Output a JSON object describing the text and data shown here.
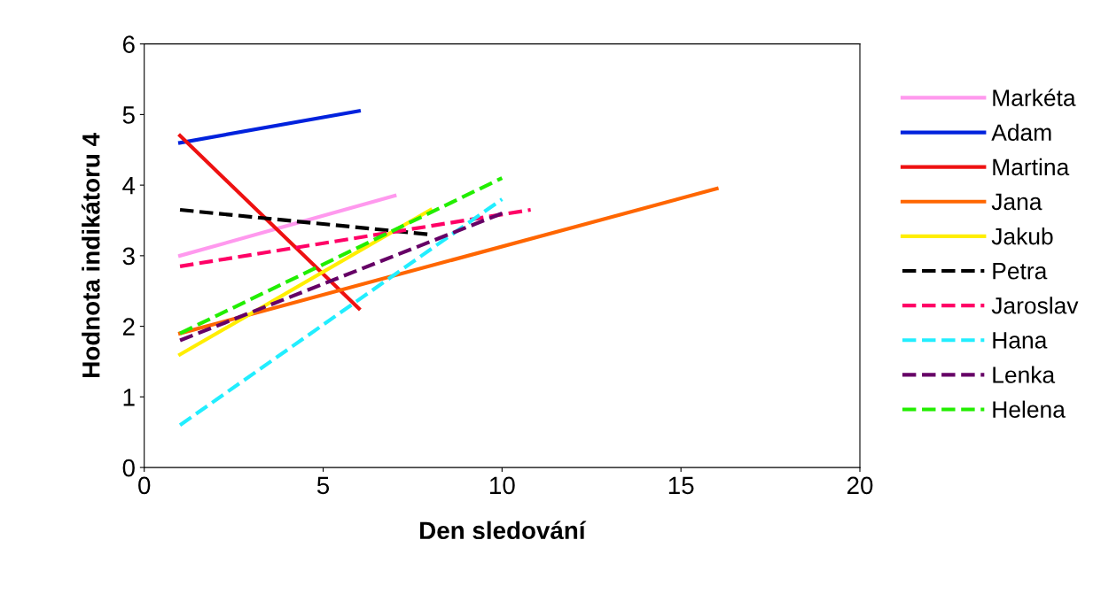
{
  "chart_data": {
    "type": "line",
    "xlabel": "Den sledování",
    "ylabel": "Hodnota indikátoru 4",
    "xlim": [
      0,
      20
    ],
    "xticks": [
      0,
      5,
      10,
      15,
      20
    ],
    "ylim": [
      0,
      6
    ],
    "yticks": [
      0,
      1,
      2,
      3,
      4,
      5,
      6
    ],
    "grid": false,
    "legend": "right",
    "marker": "none",
    "series": [
      {
        "name": "Markéta",
        "color": "#ff99ee",
        "line_style": "solid",
        "x": [
          1,
          7
        ],
        "values": [
          3.0,
          3.85
        ]
      },
      {
        "name": "Adam",
        "color": "#0022dd",
        "line_style": "solid",
        "x": [
          1,
          6
        ],
        "values": [
          4.6,
          5.05
        ]
      },
      {
        "name": "Martina",
        "color": "#ee1111",
        "line_style": "solid",
        "x": [
          1,
          6
        ],
        "values": [
          4.7,
          2.25
        ]
      },
      {
        "name": "Jana",
        "color": "#ff6600",
        "line_style": "solid",
        "x": [
          1,
          16
        ],
        "values": [
          1.9,
          3.95
        ]
      },
      {
        "name": "Jakub",
        "color": "#ffee00",
        "line_style": "solid",
        "x": [
          1,
          8
        ],
        "values": [
          1.6,
          3.65
        ]
      },
      {
        "name": "Petra",
        "color": "#000000",
        "line_style": "dashed",
        "x": [
          1,
          8
        ],
        "values": [
          3.65,
          3.3
        ]
      },
      {
        "name": "Jaroslav",
        "color": "#ff0066",
        "line_style": "dashed",
        "x": [
          1,
          10.8
        ],
        "values": [
          2.85,
          3.65
        ]
      },
      {
        "name": "Hana",
        "color": "#22eeff",
        "line_style": "dashed",
        "x": [
          1,
          10
        ],
        "values": [
          0.6,
          3.8
        ]
      },
      {
        "name": "Lenka",
        "color": "#660066",
        "line_style": "dashed",
        "x": [
          1,
          10
        ],
        "values": [
          1.8,
          3.6
        ]
      },
      {
        "name": "Helena",
        "color": "#22ee00",
        "line_style": "dashed",
        "x": [
          1,
          10
        ],
        "values": [
          1.9,
          4.1
        ]
      }
    ]
  }
}
